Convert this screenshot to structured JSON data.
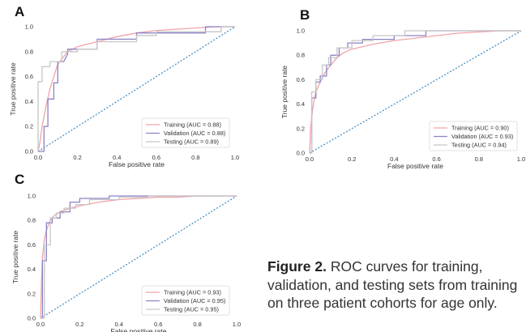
{
  "colors": {
    "training": "#f2a3a8",
    "validation": "#8b84c6",
    "testing": "#c7c7c7",
    "diagonal": "#4a90c2",
    "axis": "#333333"
  },
  "caption": {
    "label": "Figure 2.",
    "text": "ROC curves for training, validation, and testing sets from training on three patient cohorts for age only."
  },
  "chart_data": [
    {
      "panel_label": "A",
      "type": "line",
      "xlabel": "False positive rate",
      "ylabel": "True positive rate",
      "xlim": [
        0,
        1
      ],
      "ylim": [
        0,
        1
      ],
      "xticks": [
        "0.0",
        "0.2",
        "0.4",
        "0.6",
        "0.8",
        "1.0"
      ],
      "yticks": [
        "0.0",
        "0.2",
        "0.4",
        "0.6",
        "0.8",
        "1.0"
      ],
      "grid": false,
      "legend": "bottom-right",
      "diagonal": true,
      "series": [
        {
          "name": "Training (AUC = 0.88)",
          "color_key": "training",
          "x": [
            0,
            0.01,
            0.02,
            0.04,
            0.06,
            0.08,
            0.1,
            0.12,
            0.15,
            0.2,
            0.3,
            0.4,
            0.5,
            0.6,
            0.7,
            0.8,
            0.9,
            1.0
          ],
          "y": [
            0,
            0.08,
            0.2,
            0.36,
            0.5,
            0.6,
            0.7,
            0.74,
            0.8,
            0.84,
            0.88,
            0.92,
            0.95,
            0.97,
            0.98,
            0.99,
            1.0,
            1.0
          ]
        },
        {
          "name": "Validation (AUC = 0.88)",
          "color_key": "validation",
          "x": [
            0,
            0.03,
            0.03,
            0.05,
            0.05,
            0.08,
            0.08,
            0.1,
            0.1,
            0.13,
            0.15,
            0.15,
            0.3,
            0.3,
            0.5,
            0.5,
            0.85,
            0.85,
            0.95,
            1.0
          ],
          "y": [
            0,
            0,
            0.2,
            0.2,
            0.42,
            0.42,
            0.55,
            0.55,
            0.72,
            0.72,
            0.78,
            0.82,
            0.82,
            0.9,
            0.9,
            0.95,
            0.95,
            1.0,
            1.0,
            1.0
          ]
        },
        {
          "name": "Testing (AUC = 0.89)",
          "color_key": "testing",
          "x": [
            0,
            0,
            0.02,
            0.02,
            0.06,
            0.06,
            0.12,
            0.12,
            0.2,
            0.2,
            0.3,
            0.3,
            0.5,
            0.5,
            0.6,
            0.6,
            0.93,
            0.93,
            1.0
          ],
          "y": [
            0,
            0.56,
            0.56,
            0.68,
            0.68,
            0.72,
            0.72,
            0.8,
            0.8,
            0.82,
            0.82,
            0.88,
            0.88,
            0.93,
            0.93,
            0.96,
            0.96,
            1.0,
            1.0
          ]
        }
      ]
    },
    {
      "panel_label": "B",
      "type": "line",
      "xlabel": "False positive rate",
      "ylabel": "True positive rate",
      "xlim": [
        0,
        1
      ],
      "ylim": [
        0,
        1
      ],
      "xticks": [
        "0.0",
        "0.2",
        "0.4",
        "0.6",
        "0.8",
        "1.0"
      ],
      "yticks": [
        "0.0",
        "0.2",
        "0.4",
        "0.6",
        "0.8",
        "1.0"
      ],
      "grid": false,
      "legend": "bottom-right",
      "diagonal": true,
      "series": [
        {
          "name": "Training (AUC = 0.90)",
          "color_key": "training",
          "x": [
            0,
            0.005,
            0.01,
            0.02,
            0.03,
            0.05,
            0.07,
            0.1,
            0.13,
            0.16,
            0.2,
            0.3,
            0.4,
            0.5,
            0.6,
            0.7,
            0.8,
            0.9,
            1.0
          ],
          "y": [
            0,
            0.2,
            0.3,
            0.42,
            0.5,
            0.58,
            0.65,
            0.72,
            0.78,
            0.82,
            0.85,
            0.89,
            0.92,
            0.94,
            0.96,
            0.98,
            0.99,
            1.0,
            1.0
          ]
        },
        {
          "name": "Validation (AUC = 0.93)",
          "color_key": "validation",
          "x": [
            0,
            0.01,
            0.01,
            0.03,
            0.03,
            0.05,
            0.05,
            0.08,
            0.08,
            0.1,
            0.1,
            0.14,
            0.14,
            0.18,
            0.18,
            0.25,
            0.25,
            0.4,
            0.4,
            0.55,
            0.55,
            1.0
          ],
          "y": [
            0,
            0,
            0.45,
            0.45,
            0.58,
            0.58,
            0.63,
            0.63,
            0.72,
            0.72,
            0.8,
            0.8,
            0.86,
            0.86,
            0.9,
            0.9,
            0.93,
            0.93,
            0.96,
            0.96,
            1.0,
            1.0
          ]
        },
        {
          "name": "Testing (AUC = 0.94)",
          "color_key": "testing",
          "x": [
            0,
            0.01,
            0.01,
            0.03,
            0.03,
            0.06,
            0.06,
            0.09,
            0.09,
            0.13,
            0.13,
            0.2,
            0.2,
            0.3,
            0.3,
            0.45,
            0.45,
            1.0
          ],
          "y": [
            0,
            0,
            0.5,
            0.5,
            0.6,
            0.6,
            0.72,
            0.72,
            0.78,
            0.78,
            0.86,
            0.86,
            0.92,
            0.92,
            0.96,
            0.96,
            1.0,
            1.0
          ]
        }
      ]
    },
    {
      "panel_label": "C",
      "type": "line",
      "xlabel": "False positive rate",
      "ylabel": "True positive rate",
      "xlim": [
        0,
        1
      ],
      "ylim": [
        0,
        1
      ],
      "xticks": [
        "0.0",
        "0.2",
        "0.4",
        "0.6",
        "0.8",
        "1.0"
      ],
      "yticks": [
        "0.0",
        "0.2",
        "0.4",
        "0.6",
        "0.8",
        "1.0"
      ],
      "grid": false,
      "legend": "bottom-right",
      "diagonal": true,
      "series": [
        {
          "name": "Training (AUC = 0.93)",
          "color_key": "training",
          "x": [
            0,
            0.005,
            0.01,
            0.02,
            0.03,
            0.05,
            0.07,
            0.1,
            0.15,
            0.2,
            0.3,
            0.4,
            0.5,
            0.6,
            0.7,
            0.8,
            0.9,
            1.0
          ],
          "y": [
            0,
            0.3,
            0.5,
            0.65,
            0.72,
            0.8,
            0.84,
            0.87,
            0.9,
            0.92,
            0.95,
            0.97,
            0.98,
            0.99,
            0.99,
            1.0,
            1.0,
            1.0
          ]
        },
        {
          "name": "Validation (AUC = 0.95)",
          "color_key": "validation",
          "x": [
            0,
            0.01,
            0.01,
            0.03,
            0.03,
            0.06,
            0.06,
            0.1,
            0.1,
            0.15,
            0.15,
            0.2,
            0.2,
            0.35,
            0.35,
            1.0
          ],
          "y": [
            0,
            0,
            0.47,
            0.47,
            0.78,
            0.78,
            0.82,
            0.82,
            0.87,
            0.87,
            0.95,
            0.95,
            0.98,
            0.98,
            1.0,
            1.0
          ]
        },
        {
          "name": "Testing (AUC = 0.95)",
          "color_key": "testing",
          "x": [
            0,
            0.02,
            0.02,
            0.05,
            0.05,
            0.08,
            0.08,
            0.12,
            0.12,
            0.18,
            0.18,
            0.25,
            0.25,
            0.4,
            0.4,
            0.55,
            0.55,
            1.0
          ],
          "y": [
            0,
            0,
            0.6,
            0.6,
            0.82,
            0.82,
            0.86,
            0.86,
            0.9,
            0.9,
            0.93,
            0.93,
            0.97,
            0.97,
            0.99,
            0.99,
            1.0,
            1.0
          ]
        }
      ]
    }
  ]
}
